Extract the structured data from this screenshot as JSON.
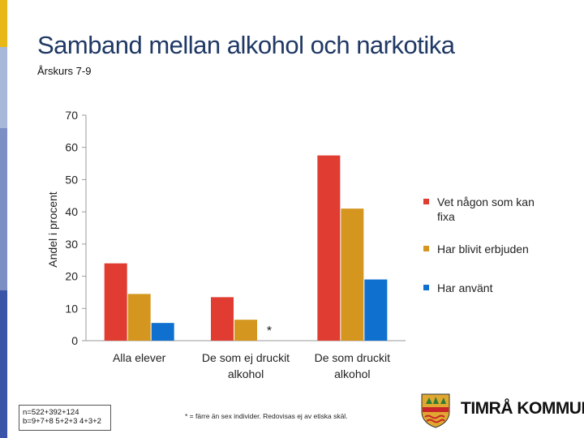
{
  "slide": {
    "title": "Samband mellan alkohol och narkotika",
    "subtitle": "Årskurs 7-9",
    "accent_colors": [
      "#e8b818",
      "#a7b8d8",
      "#7c8fc4",
      "#3a54a8"
    ]
  },
  "chart_data": {
    "type": "bar",
    "title": "",
    "xlabel": "",
    "ylabel": "Andel i procent",
    "ylim": [
      0,
      70
    ],
    "yticks": [
      0,
      10,
      20,
      30,
      40,
      50,
      60,
      70
    ],
    "grid": false,
    "legend_position": "right",
    "categories": [
      [
        "Alla elever"
      ],
      [
        "De som ej druckit",
        "alkohol"
      ],
      [
        "De som druckit",
        "alkohol"
      ]
    ],
    "series": [
      {
        "name": "Vet någon som kan fixa",
        "legend_lines": [
          "Vet någon som kan",
          "fixa"
        ],
        "color": "#e03c31",
        "values": [
          24,
          13.5,
          57.5
        ]
      },
      {
        "name": "Har blivit erbjuden",
        "legend_lines": [
          "Har blivit erbjuden"
        ],
        "color": "#d4961e",
        "values": [
          14.5,
          6.5,
          41
        ]
      },
      {
        "name": "Har använt",
        "legend_lines": [
          "Har använt"
        ],
        "color": "#1070d0",
        "values": [
          5.5,
          null,
          19
        ]
      }
    ],
    "annotations": [
      {
        "text": "*",
        "category": 1,
        "series": 2
      }
    ]
  },
  "notes": {
    "sample_sizes": [
      "n=522+392+124",
      "b=9+7+8 5+2+3 4+3+2"
    ],
    "footnote": "* = färre än sex individer. Redovisas ej av etiska skäl."
  },
  "logo": {
    "text": "TIMRÅ KOMMUN",
    "colors": {
      "gold": "#e0a830",
      "red": "#c8242a",
      "green": "#2e7d32"
    }
  }
}
